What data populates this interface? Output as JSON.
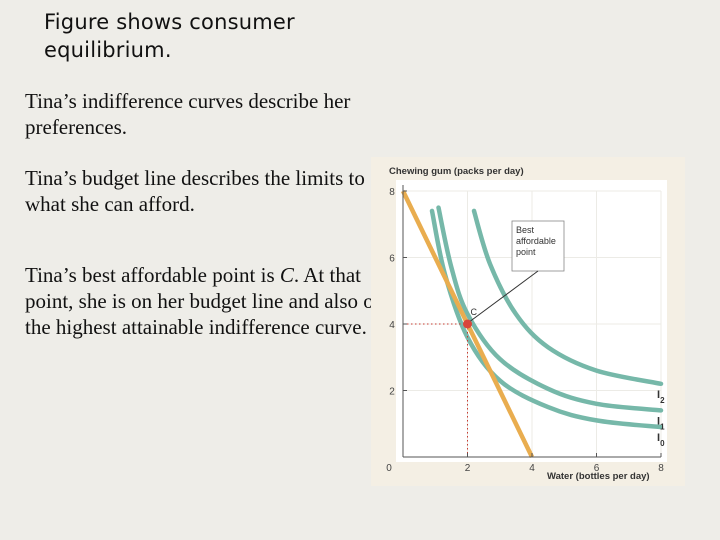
{
  "slide": {
    "heading": "Figure shows consumer equilibrium.",
    "paragraph_1": "Tina’s indifference curves describe her preferences.",
    "paragraph_2": "Tina’s budget line describes the limits to what she can afford.",
    "paragraph_3_prefix": "Tina’s best affordable point is ",
    "paragraph_3_point": "C",
    "paragraph_3_suffix": ". At that point, she is on her budget line and also on the highest attainable indifference curve."
  },
  "colors": {
    "background": "#eeede8",
    "panel": "#ffffff",
    "chart_frame": "#f4efe4",
    "indifference_curve": "#76b8a9",
    "budget_line": "#e9ad4f",
    "point": "#d9453b",
    "dotted": "#c63a30"
  },
  "chart_data": {
    "type": "line",
    "xlabel": "Water (bottles per day)",
    "ylabel": "Chewing gum (packs per day)",
    "xlim": [
      0,
      8
    ],
    "ylim": [
      0,
      8
    ],
    "x_ticks": [
      0,
      2,
      4,
      6,
      8
    ],
    "y_ticks": [
      2,
      4,
      6,
      8
    ],
    "x_tick_labels": [
      "0",
      "2",
      "4",
      "6",
      "8"
    ],
    "y_tick_labels": [
      "2",
      "4",
      "6",
      "8"
    ],
    "budget_line": {
      "points": [
        [
          0,
          8
        ],
        [
          4,
          0
        ]
      ]
    },
    "indifference_curves": [
      {
        "name": "I",
        "subscript": "0",
        "points": [
          [
            0.9,
            7.4
          ],
          [
            1.3,
            5.5
          ],
          [
            2.0,
            3.6
          ],
          [
            3.0,
            2.3
          ],
          [
            4.5,
            1.5
          ],
          [
            6.0,
            1.1
          ],
          [
            8.0,
            0.9
          ]
        ]
      },
      {
        "name": "I",
        "subscript": "1",
        "points": [
          [
            1.1,
            7.5
          ],
          [
            1.5,
            5.7
          ],
          [
            2.0,
            4.3
          ],
          [
            3.0,
            2.95
          ],
          [
            4.5,
            2.05
          ],
          [
            6.0,
            1.6
          ],
          [
            8.0,
            1.4
          ]
        ]
      },
      {
        "name": "I",
        "subscript": "2",
        "points": [
          [
            2.2,
            7.4
          ],
          [
            2.7,
            5.8
          ],
          [
            3.5,
            4.3
          ],
          [
            4.5,
            3.3
          ],
          [
            6.0,
            2.6
          ],
          [
            8.0,
            2.2
          ]
        ]
      }
    ],
    "point_C": {
      "label": "C",
      "x": 2,
      "y": 4
    },
    "callout": {
      "lines": [
        "Best",
        "affordable",
        "point"
      ]
    }
  }
}
